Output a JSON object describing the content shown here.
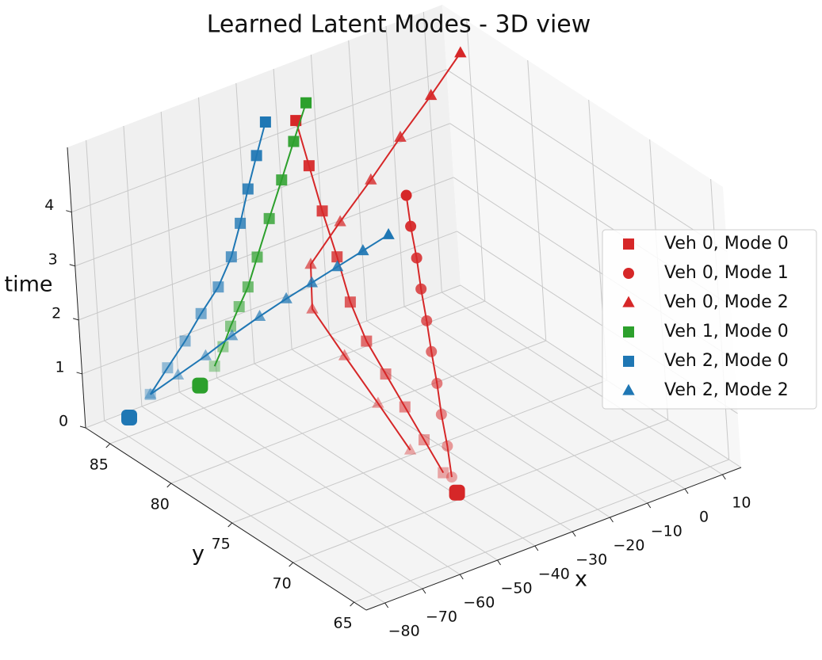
{
  "chart_data": {
    "type": "scatter3d",
    "title": "Learned Latent Modes - 3D view",
    "x_label": "x",
    "y_label": "y",
    "z_label": "time",
    "xlim": [
      -85,
      15
    ],
    "ylim": [
      64,
      87
    ],
    "zlim": [
      0,
      5.2
    ],
    "xticks": [
      {
        "value": -80,
        "label": "−80"
      },
      {
        "value": -70,
        "label": "−70"
      },
      {
        "value": -60,
        "label": "−60"
      },
      {
        "value": -50,
        "label": "−50"
      },
      {
        "value": -40,
        "label": "−40"
      },
      {
        "value": -30,
        "label": "−30"
      },
      {
        "value": -20,
        "label": "−20"
      },
      {
        "value": -10,
        "label": "−10"
      },
      0,
      10
    ],
    "yticks": [
      65,
      70,
      75,
      80,
      85
    ],
    "zticks": [
      0,
      1,
      2,
      3,
      4
    ],
    "grid": true,
    "legend": "right",
    "series": [
      {
        "name": "Veh 0, Mode 0",
        "color": "#d62728",
        "marker": "square",
        "x": [
          -39.8,
          -41.2,
          -42.6,
          -44.0,
          -45.4,
          -44.7,
          -41.9,
          -39.2,
          -36.4,
          -33.6
        ],
        "y": [
          71.5,
          72.5,
          73.5,
          74.5,
          75.5,
          76.9,
          78.7,
          80.6,
          82.4,
          84.2
        ],
        "time": [
          0.25,
          0.75,
          1.25,
          1.75,
          2.25,
          2.75,
          3.25,
          3.75,
          4.25,
          4.75
        ]
      },
      {
        "name": "Veh 0, Mode 1",
        "color": "#d62728",
        "marker": "circle",
        "x": [
          -39.5,
          -38.9,
          -38.4,
          -37.8,
          -37.2,
          -36.7,
          -36.1,
          -35.5,
          -35.0,
          -34.4
        ],
        "y": [
          70.9,
          71.3,
          71.8,
          72.2,
          72.7,
          73.1,
          73.6,
          74.0,
          74.5,
          74.9
        ],
        "time": [
          0.25,
          0.75,
          1.25,
          1.75,
          2.25,
          2.75,
          3.25,
          3.75,
          4.25,
          4.75
        ]
      },
      {
        "name": "Veh 0, Mode 2",
        "color": "#d62728",
        "marker": "triangle",
        "x": [
          -39.5,
          -39.5,
          -39.5,
          -39.5,
          -34.9,
          -25.6,
          -16.3,
          -7.0,
          2.3,
          11.6
        ],
        "y": [
          74.3,
          76.8,
          79.4,
          81.9,
          83.3,
          83.6,
          83.8,
          84.1,
          84.3,
          84.6
        ],
        "time": [
          0.25,
          0.75,
          1.25,
          1.75,
          2.25,
          2.75,
          3.25,
          3.75,
          4.25,
          4.75
        ]
      },
      {
        "name": "Veh 1, Mode 0",
        "color": "#2ca02c",
        "marker": "square",
        "x": [
          -50.7,
          -50.9,
          -51.0,
          -51.2,
          -51.3,
          -48.7,
          -43.4,
          -38.0,
          -32.7,
          -27.3
        ],
        "y": [
          86.9,
          86.0,
          85.2,
          84.3,
          83.4,
          83.3,
          83.8,
          84.3,
          84.8,
          85.3
        ],
        "time": [
          0.25,
          0.75,
          1.25,
          1.75,
          2.25,
          2.75,
          3.25,
          3.75,
          4.25,
          4.75
        ]
      },
      {
        "name": "Veh 2, Mode 0",
        "color": "#1f77b4",
        "marker": "square",
        "x": [
          -68.8,
          -65.7,
          -62.5,
          -59.4,
          -56.3,
          -53.0,
          -49.5,
          -46.0,
          -42.6,
          -39.1
        ],
        "y": [
          86.6,
          86.0,
          85.4,
          84.9,
          84.3,
          84.1,
          84.3,
          84.6,
          84.8,
          85.0
        ],
        "time": [
          0.25,
          0.75,
          1.25,
          1.75,
          2.25,
          2.75,
          3.25,
          3.75,
          4.25,
          4.75
        ]
      },
      {
        "name": "Veh 2, Mode 2",
        "color": "#1f77b4",
        "marker": "triangle",
        "x": [
          -68.8,
          -62.5,
          -56.2,
          -49.9,
          -43.6,
          -37.9,
          -32.8,
          -27.7,
          -22.6,
          -17.5
        ],
        "y": [
          86.6,
          86.2,
          85.8,
          85.5,
          85.1,
          84.6,
          84.0,
          83.4,
          82.8,
          82.2
        ],
        "time": [
          0.25,
          0.5,
          0.75,
          1.0,
          1.25,
          1.5,
          1.75,
          2.0,
          2.25,
          2.5
        ]
      }
    ],
    "current_positions": [
      {
        "color": "#d62728",
        "x": -39.3,
        "y": 70.6,
        "time": 0
      },
      {
        "color": "#2ca02c",
        "x": -54.8,
        "y": 86.9,
        "time": 0
      },
      {
        "color": "#1f77b4",
        "x": -75.0,
        "y": 86.5,
        "time": 0
      }
    ]
  }
}
